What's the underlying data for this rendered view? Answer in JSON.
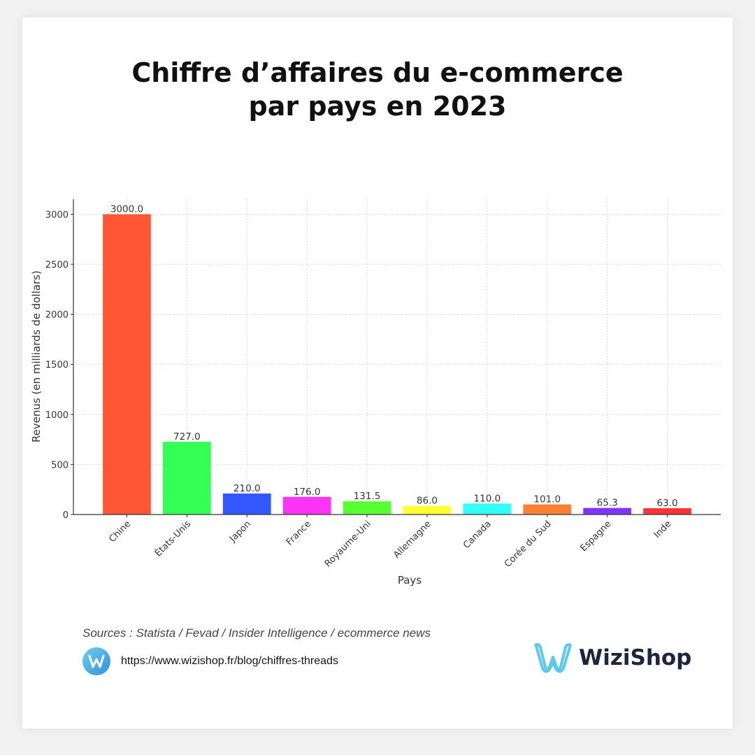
{
  "title_line1": "Chiffre d’affaires du e-commerce",
  "title_line2": "par pays en 2023",
  "sources": "Sources : Statista / Fevad / Insider Intelligence / ecommerce news",
  "link": "https://www.wizishop.fr/blog/chiffres-threads",
  "brand": {
    "name": "WiziShop",
    "logo_icon": "wizishop-w-logo",
    "colors": [
      "#5ec8ea",
      "#1e2340"
    ]
  },
  "chart_data": {
    "type": "bar",
    "xlabel": "Pays",
    "ylabel": "Revenus (en milliards de dollars)",
    "categories": [
      "Chine",
      "États-Unis",
      "Japon",
      "France",
      "Royaume-Uni",
      "Allemagne",
      "Canada",
      "Corée du Sud",
      "Espagne",
      "Inde"
    ],
    "values": [
      3000.0,
      727.0,
      210.0,
      176.0,
      131.5,
      86.0,
      110.0,
      101.0,
      65.3,
      63.0
    ],
    "value_labels": [
      "3000.0",
      "727.0",
      "210.0",
      "176.0",
      "131.5",
      "86.0",
      "110.0",
      "101.0",
      "65.3",
      "63.0"
    ],
    "colors": [
      "#FF5733",
      "#33FF57",
      "#3357FF",
      "#FF33F6",
      "#57FF33",
      "#FFFF33",
      "#33FFF6",
      "#FF8033",
      "#8033FF",
      "#FF3333"
    ],
    "yticks": [
      0,
      500,
      1000,
      1500,
      2000,
      2500,
      3000
    ],
    "ylim": [
      0,
      3150
    ],
    "grid": true,
    "legend": "none"
  }
}
